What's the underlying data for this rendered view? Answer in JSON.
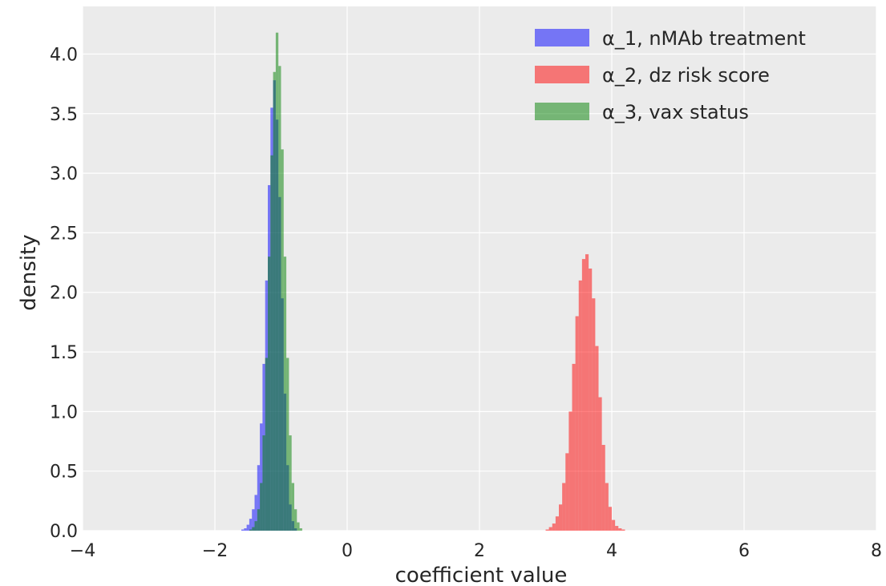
{
  "chart_data": {
    "type": "bar",
    "subtype": "overlaid-histogram",
    "title": "",
    "xlabel": "coefficient value",
    "ylabel": "density",
    "xlim": [
      -4,
      8
    ],
    "ylim": [
      0,
      4.4
    ],
    "x_ticks": [
      -4,
      -2,
      0,
      2,
      4,
      6,
      8
    ],
    "x_tick_labels": [
      "−4",
      "−2",
      "0",
      "2",
      "4",
      "6",
      "8"
    ],
    "y_ticks": [
      0.0,
      0.5,
      1.0,
      1.5,
      2.0,
      2.5,
      3.0,
      3.5,
      4.0
    ],
    "y_tick_labels": [
      "0.0",
      "0.5",
      "1.0",
      "1.5",
      "2.0",
      "2.5",
      "3.0",
      "3.5",
      "4.0"
    ],
    "grid": true,
    "background": "#ebebeb",
    "legend_position": "top-right",
    "series": [
      {
        "name": "α_1, nMAb treatment",
        "color": "#0000ff",
        "opacity": 0.5,
        "bins": [
          [
            -1.6,
            0.01
          ],
          [
            -1.56,
            0.02
          ],
          [
            -1.52,
            0.05
          ],
          [
            -1.48,
            0.1
          ],
          [
            -1.44,
            0.18
          ],
          [
            -1.4,
            0.3
          ],
          [
            -1.36,
            0.55
          ],
          [
            -1.32,
            0.9
          ],
          [
            -1.28,
            1.4
          ],
          [
            -1.24,
            2.1
          ],
          [
            -1.2,
            2.9
          ],
          [
            -1.16,
            3.55
          ],
          [
            -1.12,
            3.78
          ],
          [
            -1.08,
            3.45
          ],
          [
            -1.04,
            2.8
          ],
          [
            -1.0,
            1.95
          ],
          [
            -0.96,
            1.15
          ],
          [
            -0.92,
            0.55
          ],
          [
            -0.88,
            0.22
          ],
          [
            -0.84,
            0.08
          ],
          [
            -0.8,
            0.02
          ]
        ],
        "bin_width": 0.04
      },
      {
        "name": "α_2, dz risk score",
        "color": "#ff0000",
        "opacity": 0.5,
        "bins": [
          [
            3.0,
            0.01
          ],
          [
            3.05,
            0.03
          ],
          [
            3.1,
            0.06
          ],
          [
            3.15,
            0.12
          ],
          [
            3.2,
            0.22
          ],
          [
            3.25,
            0.4
          ],
          [
            3.3,
            0.65
          ],
          [
            3.35,
            1.0
          ],
          [
            3.4,
            1.4
          ],
          [
            3.45,
            1.8
          ],
          [
            3.5,
            2.1
          ],
          [
            3.55,
            2.28
          ],
          [
            3.6,
            2.32
          ],
          [
            3.65,
            2.2
          ],
          [
            3.7,
            1.95
          ],
          [
            3.75,
            1.55
          ],
          [
            3.8,
            1.12
          ],
          [
            3.85,
            0.72
          ],
          [
            3.9,
            0.4
          ],
          [
            3.95,
            0.2
          ],
          [
            4.0,
            0.09
          ],
          [
            4.05,
            0.04
          ],
          [
            4.1,
            0.02
          ],
          [
            4.15,
            0.01
          ]
        ],
        "bin_width": 0.05
      },
      {
        "name": "α_3, vax status",
        "color": "#008000",
        "opacity": 0.5,
        "bins": [
          [
            -1.48,
            0.01
          ],
          [
            -1.44,
            0.03
          ],
          [
            -1.4,
            0.08
          ],
          [
            -1.36,
            0.18
          ],
          [
            -1.32,
            0.4
          ],
          [
            -1.28,
            0.8
          ],
          [
            -1.24,
            1.45
          ],
          [
            -1.2,
            2.3
          ],
          [
            -1.16,
            3.15
          ],
          [
            -1.12,
            3.85
          ],
          [
            -1.08,
            4.18
          ],
          [
            -1.04,
            3.9
          ],
          [
            -1.0,
            3.2
          ],
          [
            -0.96,
            2.3
          ],
          [
            -0.92,
            1.45
          ],
          [
            -0.88,
            0.8
          ],
          [
            -0.84,
            0.4
          ],
          [
            -0.8,
            0.18
          ],
          [
            -0.76,
            0.07
          ],
          [
            -0.72,
            0.02
          ]
        ],
        "bin_width": 0.04
      }
    ]
  }
}
